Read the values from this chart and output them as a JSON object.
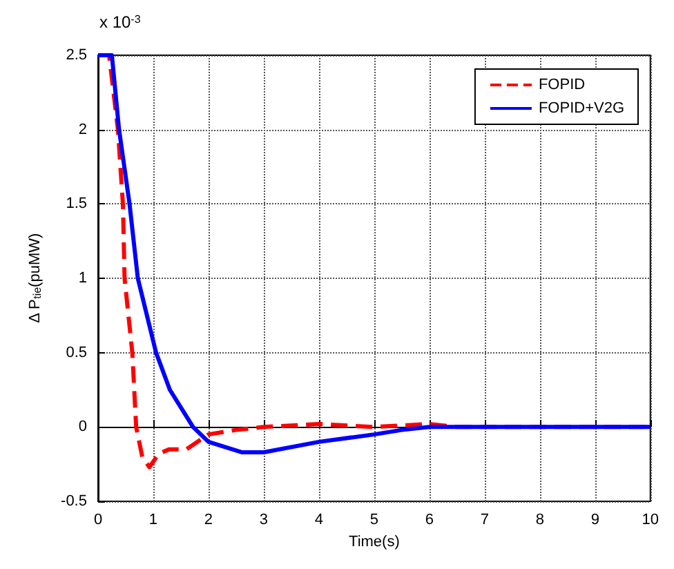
{
  "chart_data": {
    "type": "line",
    "xlabel": "Time(s)",
    "ylabel": "Δ P$_{tie}$(puMW)",
    "annotations": [
      "x 10$^{-3}$"
    ],
    "series": [
      {
        "name": "FOPID",
        "color": "#ff0000",
        "line_style": "dashed",
        "x": [
          0,
          0.2,
          0.36,
          0.45,
          0.48,
          0.62,
          0.69,
          0.8,
          0.93,
          1.1,
          1.29,
          1.6,
          2.0,
          2.5,
          3.0,
          4.0,
          5.0,
          6.0,
          6.5,
          10
        ],
        "values": [
          2.5,
          2.5,
          2.0,
          1.5,
          1.0,
          0.5,
          0.0,
          -0.2,
          -0.27,
          -0.18,
          -0.15,
          -0.15,
          -0.05,
          -0.02,
          0.0,
          0.02,
          0.0,
          0.02,
          0.0,
          0.0
        ]
      },
      {
        "name": "FOPID+V2G",
        "color": "#0000ff",
        "line_style": "solid",
        "x": [
          0,
          0.25,
          0.38,
          0.57,
          0.72,
          1.05,
          1.3,
          1.72,
          2.0,
          2.6,
          3.0,
          4.0,
          5.0,
          5.5,
          6.0,
          10
        ],
        "values": [
          2.5,
          2.5,
          2.0,
          1.5,
          1.0,
          0.5,
          0.25,
          0.0,
          -0.1,
          -0.17,
          -0.17,
          -0.1,
          -0.05,
          -0.02,
          0.0,
          0.0
        ]
      }
    ],
    "xlim": [
      0,
      10
    ],
    "xticks": [
      0,
      1,
      2,
      3,
      4,
      5,
      6,
      7,
      8,
      9,
      10
    ],
    "ylim": [
      -0.5,
      2.5
    ],
    "yticks": [
      -0.5,
      0,
      0.5,
      1,
      1.5,
      2,
      2.5
    ],
    "grid": true,
    "legend": "top right",
    "marker": "none"
  }
}
